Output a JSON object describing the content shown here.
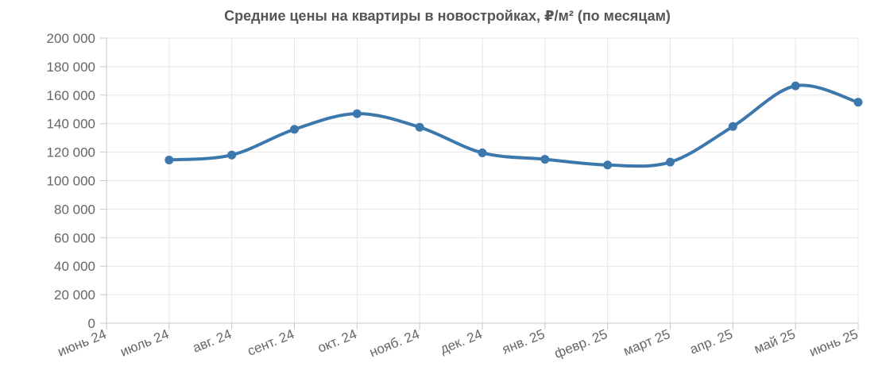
{
  "chart_data": {
    "type": "line",
    "title": "Средние цены на квартиры в новостройках, ₽/м² (по месяцам)",
    "xlabel": "",
    "ylabel": "",
    "categories": [
      "июнь 24",
      "июль 24",
      "авг. 24",
      "сент. 24",
      "окт. 24",
      "нояб. 24",
      "дек. 24",
      "янв. 25",
      "февр. 25",
      "март 25",
      "апр. 25",
      "май 25",
      "июнь 25"
    ],
    "y_ticks": [
      "0",
      "20 000",
      "40 000",
      "60 000",
      "80 000",
      "100 000",
      "120 000",
      "140 000",
      "160 000",
      "180 000",
      "200 000"
    ],
    "ylim": [
      0,
      200000
    ],
    "grid": true,
    "legend": "none",
    "series": [
      {
        "color": "#3d78ad",
        "values": [
          null,
          114500,
          118000,
          136000,
          147000,
          137500,
          119500,
          115000,
          111000,
          113000,
          138000,
          166500,
          155000
        ]
      }
    ]
  }
}
